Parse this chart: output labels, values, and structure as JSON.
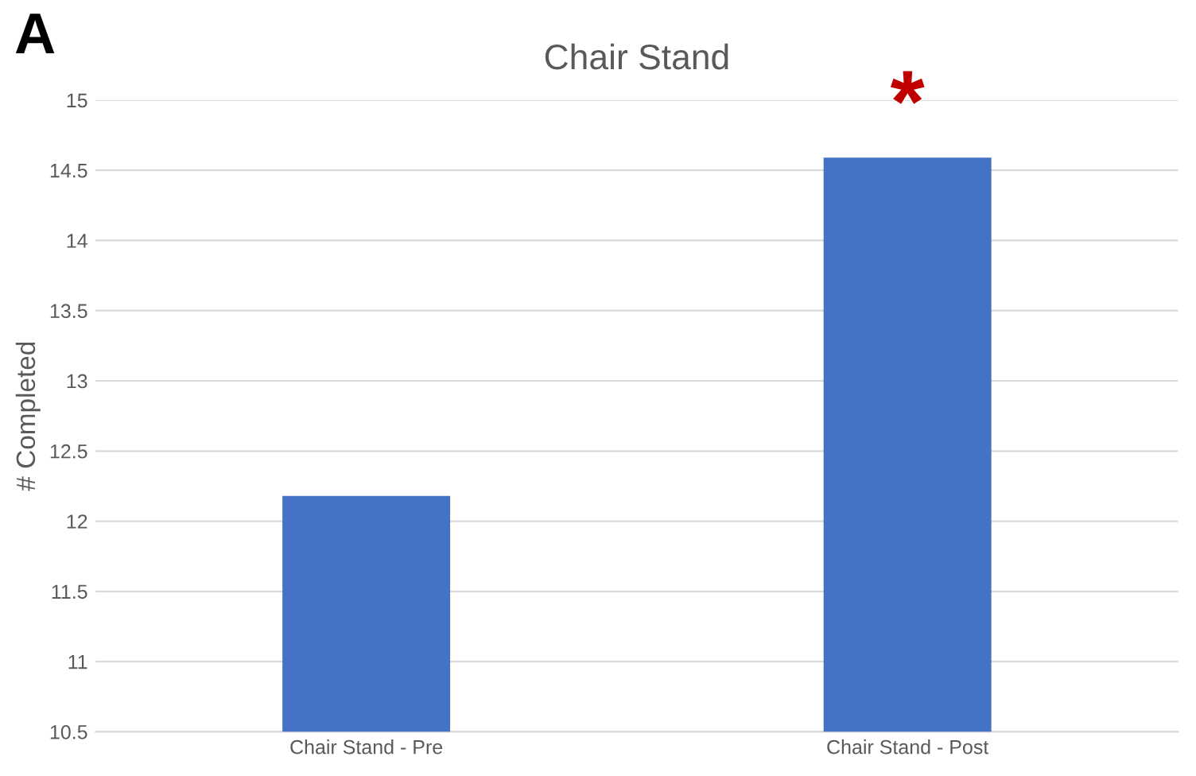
{
  "chart_data": {
    "type": "bar",
    "title": "Chair Stand",
    "ylabel": "# Completed",
    "categories": [
      "Chair Stand - Pre",
      "Chair Stand - Post"
    ],
    "values": [
      12.18,
      14.59
    ],
    "color": "#4472c4",
    "ylim": [
      10.5,
      15
    ],
    "yticks": [
      10.5,
      11,
      11.5,
      12,
      12.5,
      13,
      13.5,
      14,
      14.5,
      15
    ],
    "grid": "y",
    "annotations": [
      "A",
      {
        "text": "*",
        "x": "Chair Stand - Post",
        "y": 14.59
      }
    ]
  }
}
